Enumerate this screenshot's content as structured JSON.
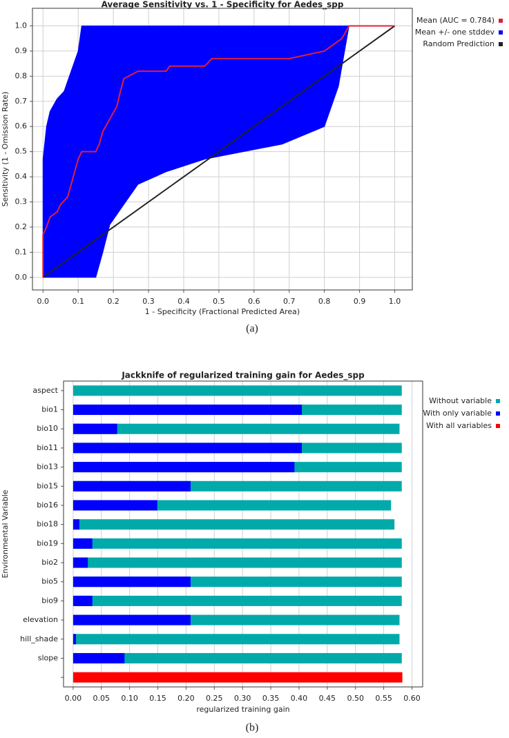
{
  "chart_data": [
    {
      "type": "line",
      "title": "Average Sensitivity vs. 1 - Specificity for Aedes_spp",
      "xlabel": "1 - Specificity (Fractional Predicted Area)",
      "ylabel": "Sensitivity (1 - Omission Rate)",
      "caption": "(a)",
      "xlim": [
        -0.03,
        1.05
      ],
      "ylim": [
        -0.05,
        1.07
      ],
      "xticks": [
        {
          "value": 0,
          "label": "0.0"
        },
        0.1,
        0.2,
        0.3,
        0.4,
        0.5,
        0.6,
        0.7,
        0.8,
        0.9,
        {
          "value": 1,
          "label": "1.0"
        }
      ],
      "yticks": [
        {
          "value": 0,
          "label": "0.0"
        },
        0.1,
        0.2,
        0.3,
        0.4,
        0.5,
        0.6,
        0.7,
        0.8,
        0.9,
        {
          "value": 1,
          "label": "1.0"
        }
      ],
      "grid": true,
      "legend": "right",
      "series": [
        {
          "name": "Mean +/- one stddev",
          "color": "#0000ff",
          "x": [
            0,
            0.01,
            0.02,
            0.04,
            0.06,
            0.08,
            0.1,
            0.11,
            0.15,
            0.17,
            0.19,
            0.23,
            0.27,
            0.35,
            0.46,
            0.68,
            0.8,
            0.82,
            0.84,
            0.87
          ],
          "upper": [
            0.47,
            0.6,
            0.66,
            0.71,
            0.74,
            0.82,
            0.9,
            1,
            1,
            1,
            1,
            1,
            1,
            1,
            1,
            1,
            1,
            1,
            1,
            1
          ],
          "lower": [
            0,
            0,
            0,
            0,
            0,
            0,
            0,
            0,
            0,
            0.1,
            0.21,
            0.29,
            0.37,
            0.42,
            0.47,
            0.53,
            0.6,
            0.68,
            0.76,
            1
          ]
        },
        {
          "name": "Random Prediction",
          "color": "#222222",
          "x": [
            0,
            1
          ],
          "values": [
            0,
            1
          ]
        },
        {
          "name": "Mean (AUC = 0.784)",
          "color": "#e0203c",
          "x": [
            0,
            0,
            0.01,
            0.02,
            0.04,
            0.05,
            0.07,
            0.08,
            0.09,
            0.1,
            0.11,
            0.15,
            0.16,
            0.17,
            0.19,
            0.21,
            0.22,
            0.23,
            0.27,
            0.35,
            0.36,
            0.46,
            0.48,
            0.7,
            0.8,
            0.82,
            0.85,
            0.87,
            1
          ],
          "values": [
            0,
            0.17,
            0.2,
            0.24,
            0.26,
            0.29,
            0.32,
            0.37,
            0.42,
            0.47,
            0.5,
            0.5,
            0.53,
            0.58,
            0.63,
            0.68,
            0.74,
            0.79,
            0.82,
            0.82,
            0.84,
            0.84,
            0.87,
            0.87,
            0.9,
            0.92,
            0.95,
            1,
            1
          ]
        }
      ],
      "legend_order": [
        2,
        0,
        1
      ]
    },
    {
      "type": "bar",
      "orientation": "horizontal",
      "title": "Jackknife of regularized training gain for Aedes_spp",
      "xlabel": "regularized training gain",
      "ylabel": "Environmental Variable",
      "caption": "(b)",
      "xlim": [
        -0.017,
        0.619
      ],
      "xticks": [
        {
          "value": 0,
          "label": "0.00"
        },
        0.05,
        {
          "value": 0.1,
          "label": "0.10"
        },
        0.15,
        {
          "value": 0.2,
          "label": "0.20"
        },
        0.25,
        {
          "value": 0.3,
          "label": "0.30"
        },
        0.35,
        {
          "value": 0.4,
          "label": "0.40"
        },
        0.45,
        {
          "value": 0.5,
          "label": "0.50"
        },
        0.55,
        {
          "value": 0.6,
          "label": "0.60"
        }
      ],
      "grid": true,
      "legend": "right",
      "categories": [
        "aspect",
        "bio1",
        "bio10",
        "bio11",
        "bio13",
        "bio15",
        "bio16",
        "bio18",
        "bio19",
        "bio2",
        "bio5",
        "bio9",
        "elevation",
        "hill_shade",
        "slope",
        null
      ],
      "series": [
        {
          "name": "Without variable",
          "color": "#00aaaa",
          "values": [
            0.582,
            0.582,
            0.578,
            0.582,
            0.582,
            0.582,
            0.563,
            0.569,
            0.582,
            0.582,
            0.582,
            0.582,
            0.578,
            0.578,
            0.582,
            null
          ]
        },
        {
          "name": "With only variable",
          "color": "#0000ff",
          "values": [
            0,
            0.405,
            0.078,
            0.405,
            0.392,
            0.208,
            0.149,
            0.011,
            0.034,
            0.026,
            0.208,
            0.034,
            0.208,
            0.005,
            0.091,
            null
          ]
        },
        {
          "name": "With all variables",
          "color": "#ff0000",
          "values": [
            null,
            null,
            null,
            null,
            null,
            null,
            null,
            null,
            null,
            null,
            null,
            null,
            null,
            null,
            null,
            0.583
          ]
        }
      ]
    }
  ]
}
